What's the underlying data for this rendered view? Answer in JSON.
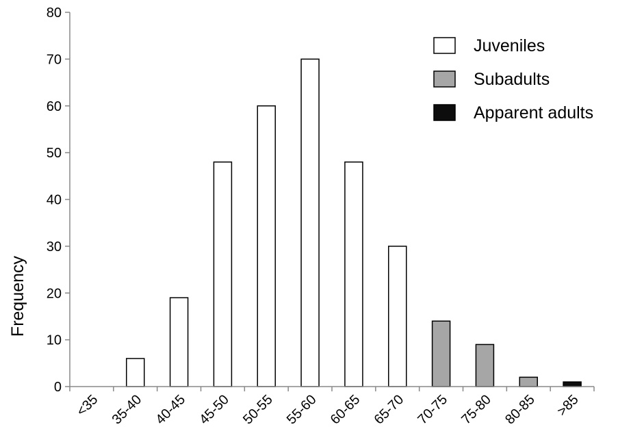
{
  "chart_data": {
    "type": "bar",
    "title": "",
    "xlabel": "",
    "ylabel": "Frequency",
    "ylim": [
      0,
      80
    ],
    "yticks": [
      0,
      10,
      20,
      30,
      40,
      50,
      60,
      70,
      80
    ],
    "grid": false,
    "legend_position": "top-right",
    "categories": [
      "<35",
      "35-40",
      "40-45",
      "45-50",
      "50-55",
      "55-60",
      "60-65",
      "65-70",
      "70-75",
      "75-80",
      "80-85",
      ">85"
    ],
    "series": [
      {
        "name": "Juveniles",
        "color": "#ffffff",
        "values": [
          0,
          6,
          19,
          48,
          60,
          70,
          48,
          30,
          0,
          0,
          0,
          0
        ]
      },
      {
        "name": "Subadults",
        "color": "#a6a6a6",
        "values": [
          0,
          0,
          0,
          0,
          0,
          0,
          0,
          0,
          14,
          9,
          2,
          0
        ]
      },
      {
        "name": "Apparent adults",
        "color": "#0d0d0d",
        "values": [
          0,
          0,
          0,
          0,
          0,
          0,
          0,
          0,
          0,
          0,
          0,
          1
        ]
      }
    ]
  }
}
